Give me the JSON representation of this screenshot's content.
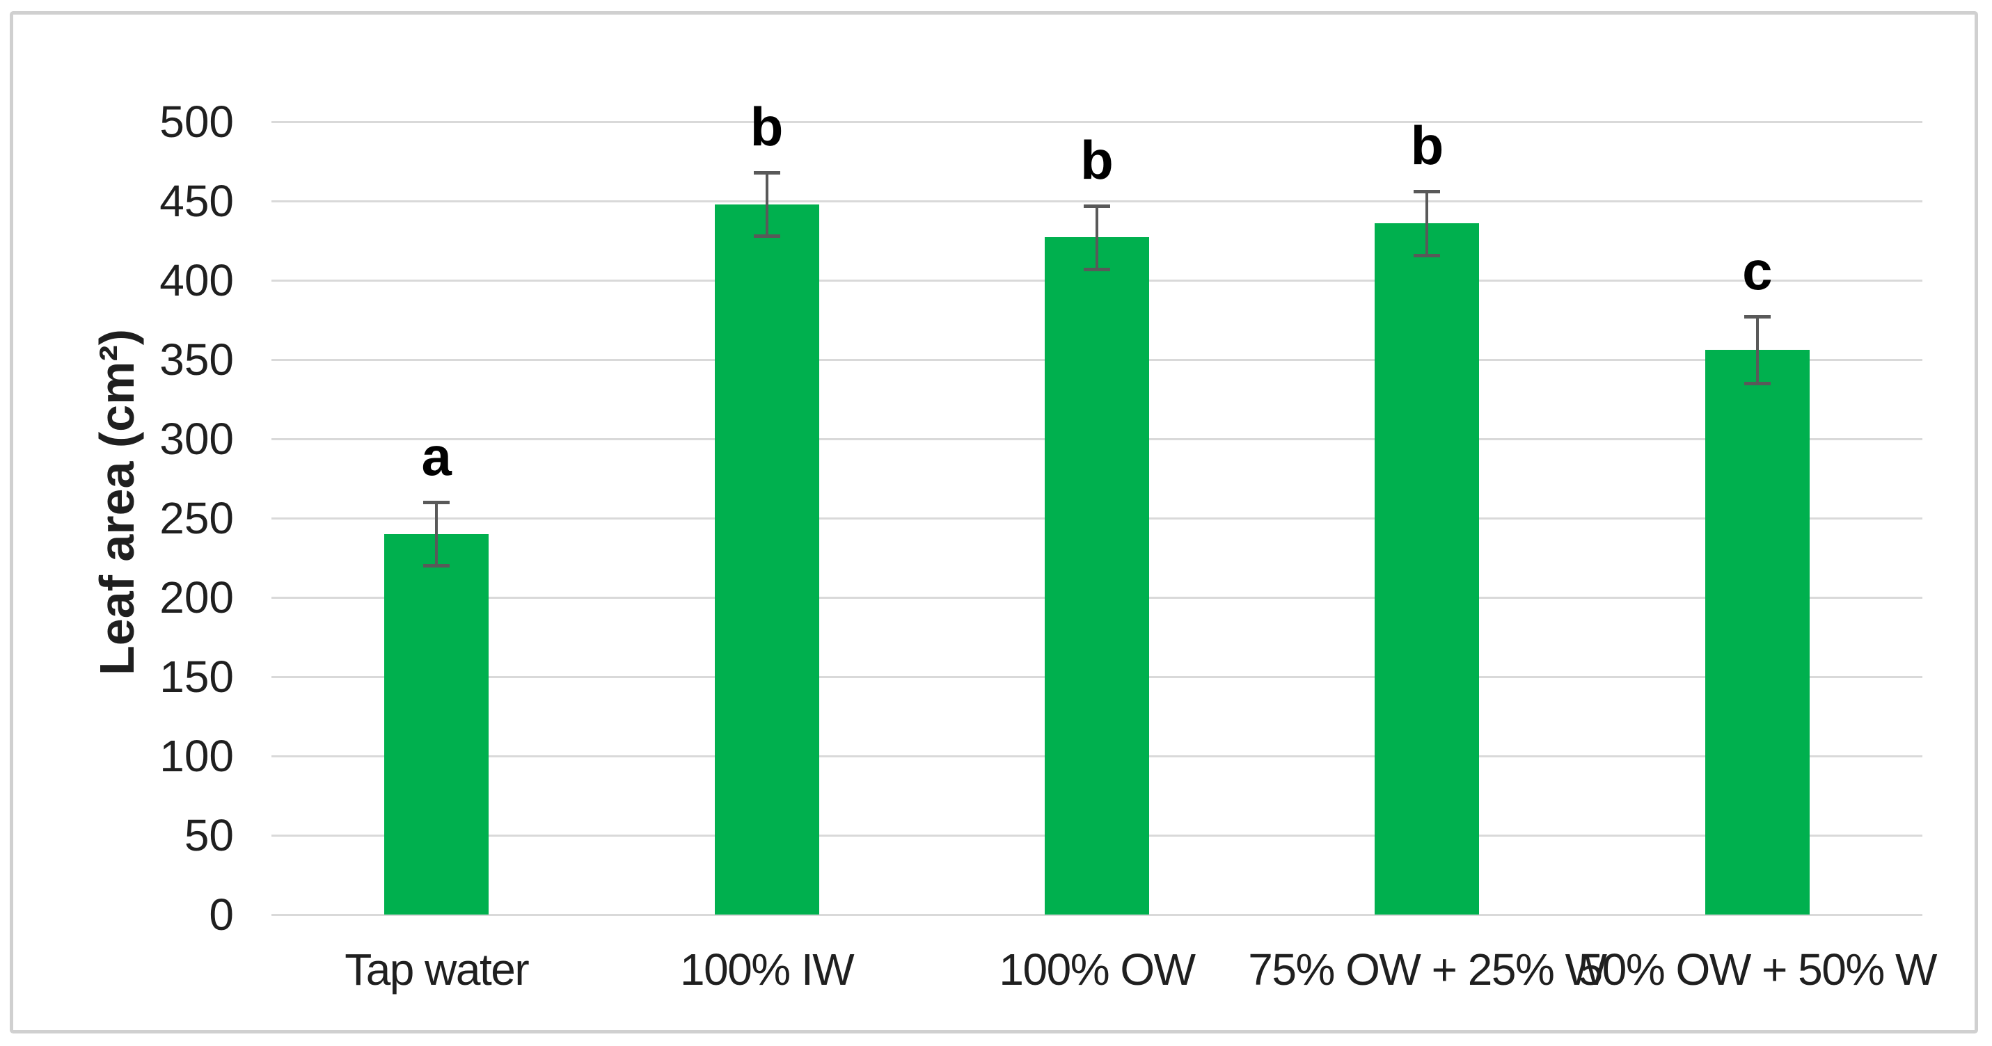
{
  "figure": {
    "background_color": "#ffffff",
    "border_color": "#d0d0d0"
  },
  "chart_data": {
    "type": "bar",
    "title": "",
    "xlabel": "",
    "ylabel": "Leaf area (cm²)",
    "categories": [
      "Tap water",
      "100% IW",
      "100% OW",
      "75% OW + 25% W",
      "50% OW + 50% W"
    ],
    "values": [
      240,
      448,
      427,
      436,
      356
    ],
    "error_bars": [
      20,
      20,
      20,
      20,
      21
    ],
    "sig_letters": [
      "a",
      "b",
      "b",
      "b",
      "c"
    ],
    "ylim": [
      0,
      500
    ],
    "ytick_step": 50,
    "yticks": [
      0,
      50,
      100,
      150,
      200,
      250,
      300,
      350,
      400,
      450,
      500
    ],
    "grid": true,
    "legend": "none",
    "bar_color": "#00B04E",
    "error_bar_color": "#595959",
    "gridline_color": "#d9d9d9",
    "text_color": "#1f1f1f"
  }
}
